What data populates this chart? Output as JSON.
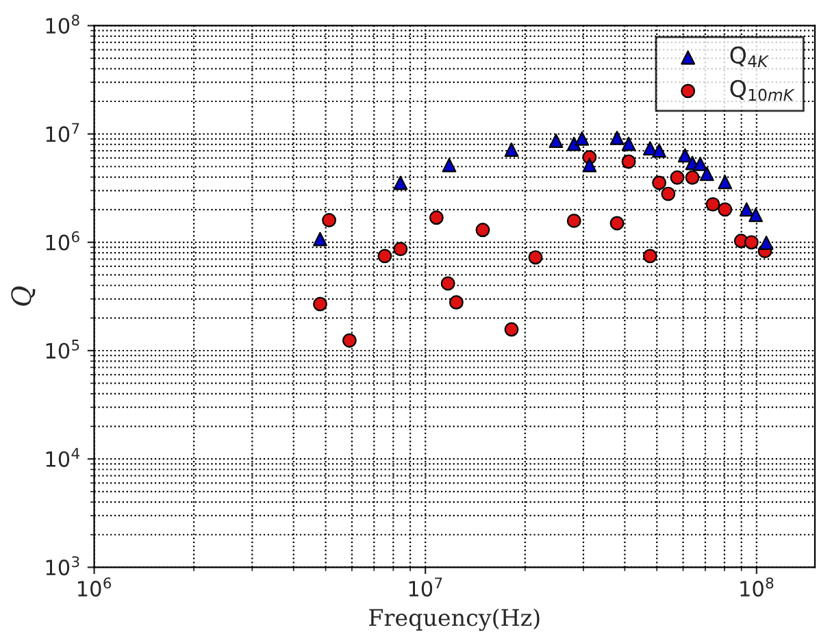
{
  "chart_data": {
    "type": "scatter",
    "xlabel": "Frequency(Hz)",
    "ylabel": "Q",
    "log": "xy",
    "grid": true,
    "legend": "top right",
    "xlim": [
      1000000,
      150000000
    ],
    "ylim": [
      1000,
      100000000
    ],
    "xticks": [
      {
        "value": 1000000,
        "label": "10$^{6}$"
      },
      {
        "value": 10000000,
        "label": "10$^{7}$"
      },
      {
        "value": 100000000,
        "label": "10$^{8}$"
      }
    ],
    "yticks": [
      {
        "value": 1000,
        "label": "10$^{3}$"
      },
      {
        "value": 10000,
        "label": "10$^{4}$"
      },
      {
        "value": 100000,
        "label": "10$^{5}$"
      },
      {
        "value": 1000000,
        "label": "10$^{6}$"
      },
      {
        "value": 10000000,
        "label": "10$^{7}$"
      },
      {
        "value": 100000000,
        "label": "10$^{8}$"
      }
    ],
    "series": [
      {
        "name": "Q$_{4K}$",
        "color": "#0000cc",
        "marker": "triangle",
        "x": [
          4810000,
          8410000,
          11800000,
          18200000,
          24800000,
          28100000,
          29700000,
          31300000,
          37900000,
          41100000,
          47700000,
          50800000,
          60800000,
          64000000,
          67600000,
          70800000,
          80300000,
          93300000,
          99400000,
          107000000
        ],
        "values": [
          1070000,
          3540000,
          5160000,
          7160000,
          8640000,
          8090000,
          9060000,
          5160000,
          9200000,
          8100000,
          7360000,
          7030000,
          6340000,
          5400000,
          5300000,
          4280000,
          3600000,
          2010000,
          1790000,
          990000
        ]
      },
      {
        "name": "Q$_{10mK}$",
        "color": "#dd1111",
        "marker": "circle",
        "x": [
          5120000,
          4810000,
          5900000,
          7540000,
          8410000,
          10800000,
          11700000,
          12400000,
          14900000,
          18200000,
          21500000,
          28100000,
          31300000,
          37900000,
          41100000,
          47700000,
          50800000,
          54100000,
          57600000,
          64000000,
          73800000,
          80300000,
          89800000,
          96500000,
          106000000
        ],
        "values": [
          1600000,
          269000,
          124000,
          746000,
          867000,
          1690000,
          417000,
          279000,
          1300000,
          157000,
          726000,
          1580000,
          6100000,
          1500000,
          5560000,
          746000,
          3540000,
          2800000,
          3960000,
          3960000,
          2240000,
          2010000,
          1030000,
          1000000,
          830000
        ]
      }
    ]
  }
}
